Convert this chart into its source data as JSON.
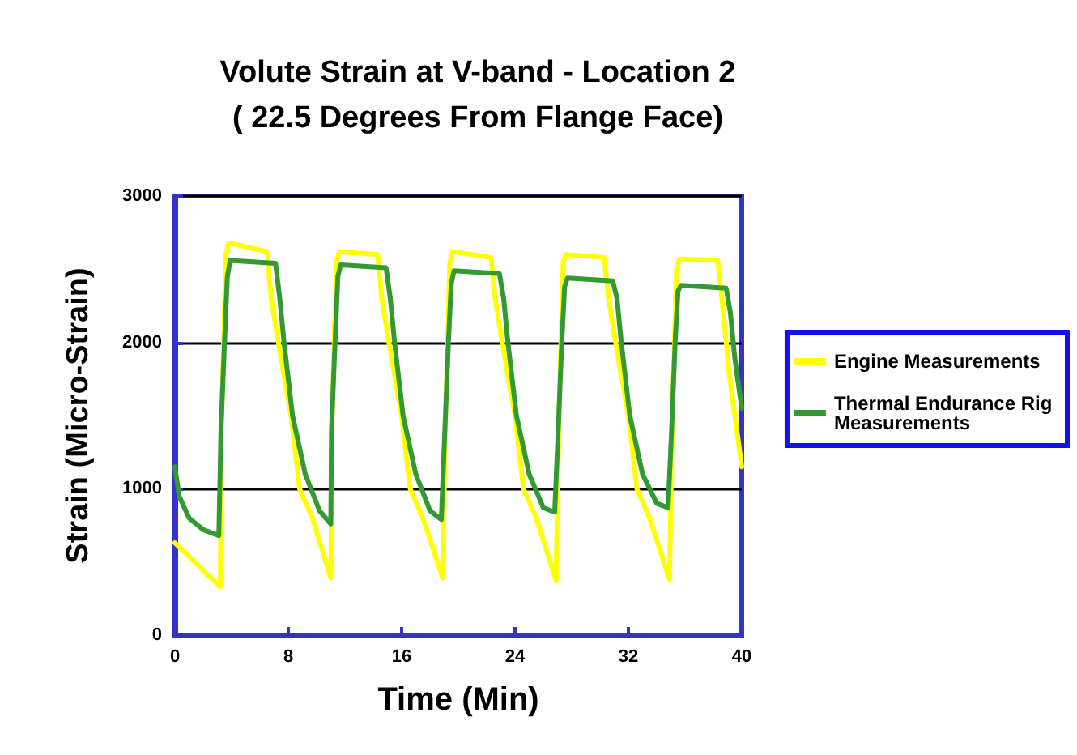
{
  "chart_data": {
    "type": "line",
    "title": "Volute Strain at V-band - Location 2\n( 22.5 Degrees From Flange Face)",
    "xlabel": "Time (Min)",
    "ylabel": "Strain (Micro-Strain)",
    "xlim": [
      0,
      40
    ],
    "xticks": [
      0,
      8,
      16,
      24,
      32,
      40
    ],
    "ylim": [
      0,
      3000
    ],
    "yticks": [
      0,
      1000,
      2000,
      3000
    ],
    "grid": "y",
    "legend": "right",
    "marker": "none",
    "line_style": "solid",
    "series": [
      {
        "name": "Engine Measurements",
        "color": "#ffff00",
        "x": [
          0,
          3.2,
          3.3,
          3.6,
          3.8,
          6.5,
          6.8,
          7.3,
          8.2,
          8.8,
          9.7,
          11.0,
          11.1,
          11.4,
          11.6,
          14.3,
          14.6,
          15.1,
          16.0,
          16.6,
          17.5,
          18.9,
          19.1,
          19.4,
          19.6,
          22.3,
          22.6,
          23.1,
          24.0,
          24.6,
          25.5,
          26.9,
          27.1,
          27.4,
          27.6,
          30.3,
          30.6,
          31.1,
          32.0,
          32.6,
          33.5,
          34.9,
          35.1,
          35.4,
          35.6,
          38.3,
          38.6,
          39.1,
          40.0
        ],
        "values": [
          630,
          330,
          1500,
          2600,
          2680,
          2620,
          2300,
          2000,
          1500,
          1000,
          800,
          390,
          1500,
          2550,
          2620,
          2600,
          2300,
          2000,
          1500,
          1000,
          800,
          390,
          1500,
          2550,
          2620,
          2580,
          2300,
          2000,
          1500,
          1000,
          800,
          370,
          1500,
          2550,
          2600,
          2580,
          2300,
          2000,
          1500,
          1000,
          800,
          380,
          1500,
          2500,
          2570,
          2560,
          2300,
          1800,
          1150
        ]
      },
      {
        "name": "Thermal Endurance Rig Measurements",
        "color": "#339933",
        "x": [
          0,
          0.3,
          1.0,
          2.0,
          3.1,
          3.25,
          3.5,
          3.7,
          3.9,
          7.1,
          7.4,
          7.7,
          8.3,
          9.2,
          10.2,
          11.0,
          11.05,
          11.3,
          11.5,
          11.7,
          14.9,
          15.2,
          15.5,
          16.1,
          17.0,
          18.0,
          18.8,
          19.05,
          19.3,
          19.5,
          19.7,
          22.9,
          23.2,
          23.5,
          24.1,
          25.0,
          26.0,
          26.8,
          27.05,
          27.3,
          27.5,
          27.7,
          30.9,
          31.2,
          31.5,
          32.1,
          33.0,
          34.0,
          34.8,
          35.05,
          35.3,
          35.5,
          35.7,
          38.9,
          39.2,
          39.5,
          40.0
        ],
        "values": [
          1150,
          950,
          800,
          720,
          680,
          1400,
          2000,
          2450,
          2560,
          2540,
          2300,
          2000,
          1500,
          1100,
          850,
          760,
          1400,
          2000,
          2450,
          2530,
          2510,
          2300,
          2000,
          1500,
          1100,
          850,
          790,
          1400,
          2000,
          2400,
          2490,
          2470,
          2300,
          2000,
          1500,
          1100,
          870,
          840,
          1400,
          2000,
          2380,
          2440,
          2420,
          2300,
          2000,
          1500,
          1100,
          900,
          870,
          1400,
          2000,
          2350,
          2390,
          2370,
          2200,
          1900,
          1550
        ]
      }
    ]
  }
}
